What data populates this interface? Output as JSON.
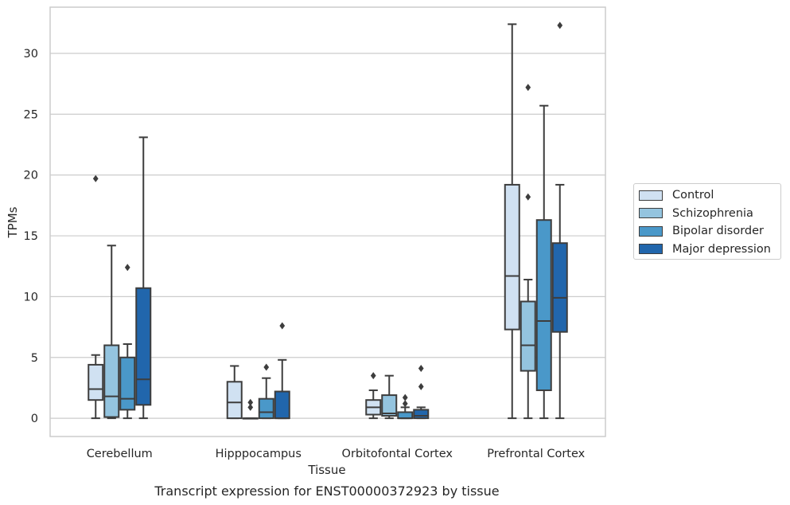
{
  "chart_data": {
    "type": "boxplot",
    "title": "Transcript expression for ENST00000372923 by tissue",
    "xlabel": "Tissue",
    "ylabel": "TPMs",
    "ylim": [
      -1.5,
      33.8
    ],
    "yticks": [
      0,
      5,
      10,
      15,
      20,
      25,
      30
    ],
    "categories": [
      "Cerebellum",
      "Hipppocampus",
      "Orbitofontal Cortex",
      "Prefrontal Cortex"
    ],
    "legend_position": "right",
    "grid": true,
    "series": [
      {
        "name": "Control",
        "color": "#d0e1f2",
        "boxes": [
          {
            "whislo": 0.0,
            "q1": 1.5,
            "med": 2.4,
            "q3": 4.4,
            "whishi": 5.2,
            "fliers": [
              19.7
            ]
          },
          {
            "whislo": 0.0,
            "q1": 0.0,
            "med": 1.3,
            "q3": 3.0,
            "whishi": 4.3,
            "fliers": []
          },
          {
            "whislo": 0.0,
            "q1": 0.3,
            "med": 0.9,
            "q3": 1.5,
            "whishi": 2.3,
            "fliers": [
              3.5
            ]
          },
          {
            "whislo": 0.0,
            "q1": 7.3,
            "med": 11.7,
            "q3": 19.2,
            "whishi": 32.4,
            "fliers": []
          }
        ]
      },
      {
        "name": "Schizophrenia",
        "color": "#94c4df",
        "boxes": [
          {
            "whislo": 0.0,
            "q1": 0.1,
            "med": 1.8,
            "q3": 6.0,
            "whishi": 14.2,
            "fliers": []
          },
          {
            "whislo": 0.0,
            "q1": 0.0,
            "med": 0.0,
            "q3": 0.0,
            "whishi": 0.0,
            "fliers": [
              0.9,
              1.3
            ]
          },
          {
            "whislo": 0.0,
            "q1": 0.2,
            "med": 0.4,
            "q3": 1.9,
            "whishi": 3.5,
            "fliers": []
          },
          {
            "whislo": 0.0,
            "q1": 3.9,
            "med": 6.0,
            "q3": 9.6,
            "whishi": 11.4,
            "fliers": [
              18.2,
              27.2
            ]
          }
        ]
      },
      {
        "name": "Bipolar disorder",
        "color": "#4a98c9",
        "boxes": [
          {
            "whislo": 0.0,
            "q1": 0.7,
            "med": 1.6,
            "q3": 5.0,
            "whishi": 6.1,
            "fliers": [
              12.4
            ]
          },
          {
            "whislo": 0.0,
            "q1": 0.0,
            "med": 0.5,
            "q3": 1.6,
            "whishi": 3.3,
            "fliers": [
              4.2
            ]
          },
          {
            "whislo": 0.0,
            "q1": 0.0,
            "med": 0.0,
            "q3": 0.5,
            "whishi": 0.9,
            "fliers": [
              1.2,
              1.7
            ]
          },
          {
            "whislo": 0.0,
            "q1": 2.3,
            "med": 8.0,
            "q3": 16.3,
            "whishi": 25.7,
            "fliers": []
          }
        ]
      },
      {
        "name": "Major depression",
        "color": "#2166ac",
        "boxes": [
          {
            "whislo": 0.0,
            "q1": 1.1,
            "med": 3.2,
            "q3": 10.7,
            "whishi": 23.1,
            "fliers": []
          },
          {
            "whislo": 0.0,
            "q1": 0.0,
            "med": 0.0,
            "q3": 2.2,
            "whishi": 4.8,
            "fliers": [
              7.6
            ]
          },
          {
            "whislo": 0.0,
            "q1": 0.0,
            "med": 0.2,
            "q3": 0.7,
            "whishi": 0.9,
            "fliers": [
              2.6,
              4.1
            ]
          },
          {
            "whislo": 0.0,
            "q1": 7.1,
            "med": 9.9,
            "q3": 14.4,
            "whishi": 19.2,
            "fliers": [
              32.3
            ]
          }
        ]
      }
    ]
  }
}
